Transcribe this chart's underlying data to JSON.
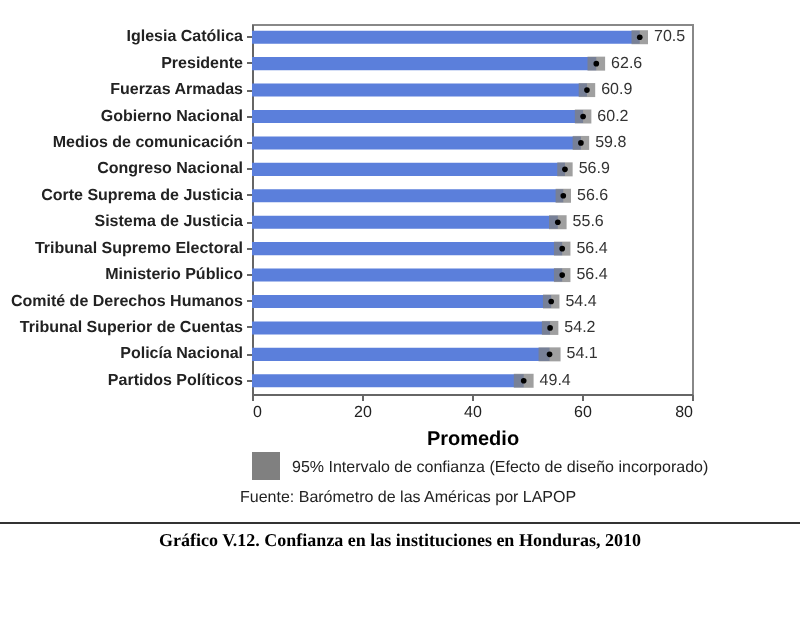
{
  "chart_data": {
    "type": "bar",
    "orientation": "horizontal",
    "title": "Gráfico V.12. Confianza en las instituciones en Honduras, 2010",
    "xlabel": "Promedio",
    "categories": [
      "Iglesia Católica",
      "Presidente",
      "Fuerzas Armadas",
      "Gobierno Nacional",
      "Medios de comunicación",
      "Congreso Nacional",
      "Corte Suprema de Justicia",
      "Sistema de Justicia",
      "Tribunal Supremo Electoral",
      "Ministerio Público",
      "Comité de Derechos Humanos",
      "Tribunal Superior de Cuentas",
      "Policía Nacional",
      "Partidos Políticos"
    ],
    "values": [
      70.5,
      62.6,
      60.9,
      60.2,
      59.8,
      56.9,
      56.6,
      55.6,
      56.4,
      56.4,
      54.4,
      54.2,
      54.1,
      49.4
    ],
    "errors": [
      1.5,
      1.6,
      1.5,
      1.5,
      1.5,
      1.4,
      1.4,
      1.6,
      1.5,
      1.5,
      1.5,
      1.5,
      2.0,
      1.8
    ],
    "color": "#5b7fdb",
    "data_labels": true,
    "xlim": [
      0,
      80
    ],
    "xticks": [
      0,
      20,
      40,
      60,
      80
    ],
    "annotations": [
      "95% Intervalo de confianza (Efecto de diseño incorporado)",
      "Fuente: Barómetro de las Américas por LAPOP"
    ]
  }
}
